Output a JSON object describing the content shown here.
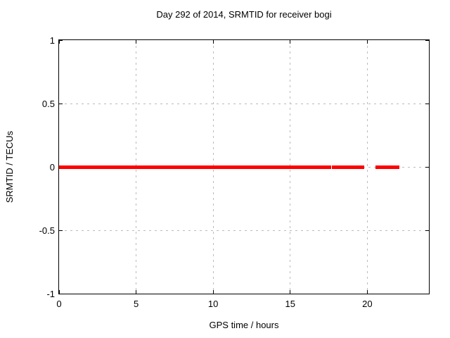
{
  "chart_data": {
    "type": "scatter",
    "title": "Day 292 of 2014, SRMTID for receiver bogi",
    "xlabel": "GPS time / hours",
    "ylabel": "SRMTID / TECUs",
    "xlim": [
      0,
      24
    ],
    "ylim": [
      -1,
      1
    ],
    "xticks": [
      {
        "value": 0,
        "label": "0"
      },
      {
        "value": 5,
        "label": "5"
      },
      {
        "value": 10,
        "label": "10"
      },
      {
        "value": 15,
        "label": "15"
      },
      {
        "value": 20,
        "label": "20"
      }
    ],
    "yticks": [
      {
        "value": 1,
        "label": "1"
      },
      {
        "value": 0.5,
        "label": "0.5"
      },
      {
        "value": 0,
        "label": "0"
      },
      {
        "value": -0.5,
        "label": "-0.5"
      },
      {
        "value": -1,
        "label": "-1"
      }
    ],
    "grid": true,
    "legend": "none",
    "marker_color": "#ff0000",
    "grid_color": "#bbbbbb",
    "axis_color": "#000000",
    "series": [
      {
        "name": "SRMTID",
        "y_value": 0,
        "segments_hours": [
          [
            0.09,
            0.41
          ],
          [
            0.5,
            1.05
          ],
          [
            1.14,
            1.51
          ],
          [
            1.6,
            2.14
          ],
          [
            2.24,
            2.51
          ],
          [
            2.6,
            2.78
          ],
          [
            2.87,
            3.06
          ],
          [
            3.19,
            3.6
          ],
          [
            3.7,
            4.15
          ],
          [
            4.24,
            4.52
          ],
          [
            4.56,
            4.7
          ],
          [
            4.84,
            5.29
          ],
          [
            5.43,
            5.61
          ],
          [
            5.7,
            5.79
          ],
          [
            5.84,
            6.02
          ],
          [
            6.11,
            6.2
          ],
          [
            6.39,
            6.48
          ],
          [
            6.53,
            6.62
          ],
          [
            6.66,
            6.75
          ],
          [
            6.8,
            6.89
          ],
          [
            7.03,
            7.25
          ],
          [
            7.3,
            7.39
          ],
          [
            7.53,
            7.71
          ],
          [
            7.76,
            8.21
          ],
          [
            8.3,
            8.85
          ],
          [
            8.94,
            9.12
          ],
          [
            9.21,
            9.49
          ],
          [
            9.58,
            11.54
          ],
          [
            11.59,
            11.68
          ],
          [
            11.72,
            11.86
          ],
          [
            11.95,
            12.13
          ],
          [
            12.19,
            14.23
          ],
          [
            14.32,
            14.51
          ],
          [
            14.64,
            14.73
          ],
          [
            14.78,
            14.92
          ],
          [
            15.05,
            15.97
          ],
          [
            16.01,
            16.1
          ],
          [
            16.2,
            16.65
          ],
          [
            16.7,
            16.83
          ],
          [
            16.97,
            17.06
          ],
          [
            17.2,
            17.38
          ],
          [
            17.43,
            17.56
          ],
          [
            17.79,
            18.07
          ],
          [
            18.11,
            18.34
          ],
          [
            18.38,
            18.66
          ],
          [
            18.7,
            18.98
          ],
          [
            19.16,
            19.48
          ],
          [
            19.62,
            19.71
          ],
          [
            20.62,
            20.71
          ],
          [
            20.76,
            21.49
          ],
          [
            21.54,
            21.63
          ],
          [
            21.77,
            21.99
          ]
        ]
      }
    ]
  }
}
